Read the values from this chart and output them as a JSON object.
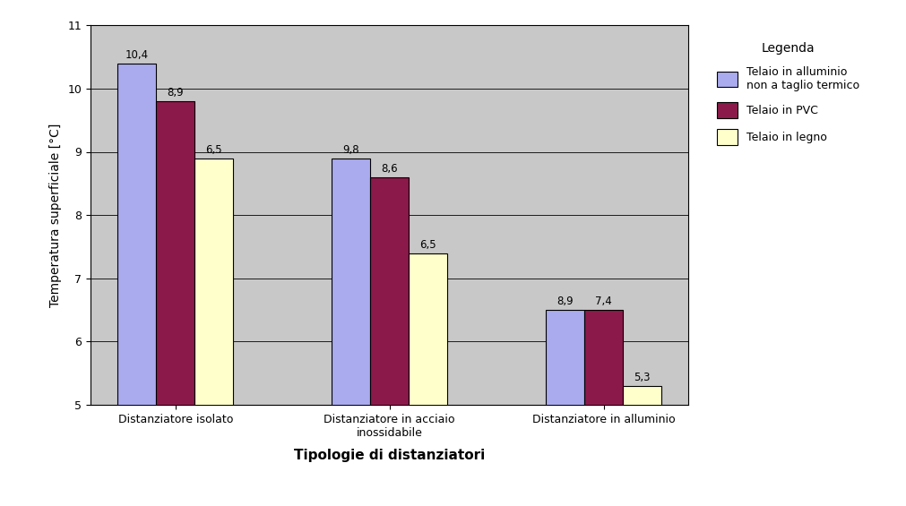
{
  "categories": [
    "Distanziatore isolato",
    "Distanziatore in acciaio\ninossidabile",
    "Distanziatore in alluminio"
  ],
  "series": [
    {
      "label": "Telaio in alluminio\nnon a taglio termico",
      "color": "#AAAAEE",
      "values": [
        10.4,
        8.9,
        6.5
      ]
    },
    {
      "label": "Telaio in PVC",
      "color": "#8B1A4A",
      "values": [
        9.8,
        8.6,
        6.5
      ]
    },
    {
      "label": "Telaio in legno",
      "color": "#FFFFCC",
      "values": [
        8.9,
        7.4,
        5.3
      ]
    }
  ],
  "value_labels": [
    [
      "10,4",
      "9,8",
      "8,9"
    ],
    [
      "8,9",
      "8,6",
      "7,4"
    ],
    [
      "6,5",
      "6,5",
      "5,3"
    ]
  ],
  "ylabel": "Temperatura superficiale [°C]",
  "xlabel": "Tipologie di distanziatori",
  "ylim": [
    5,
    11
  ],
  "yticks": [
    5,
    6,
    7,
    8,
    9,
    10,
    11
  ],
  "legend_title": "Legenda",
  "outer_bg_color": "#FFFFFF",
  "plot_bg_color": "#C8C8C8",
  "bar_edge_color": "#000000",
  "grid_color": "#000000",
  "annotation_fontsize": 8.5,
  "tick_fontsize": 9,
  "label_fontsize": 10,
  "xlabel_fontsize": 11,
  "legend_fontsize": 9,
  "bar_width": 0.18
}
